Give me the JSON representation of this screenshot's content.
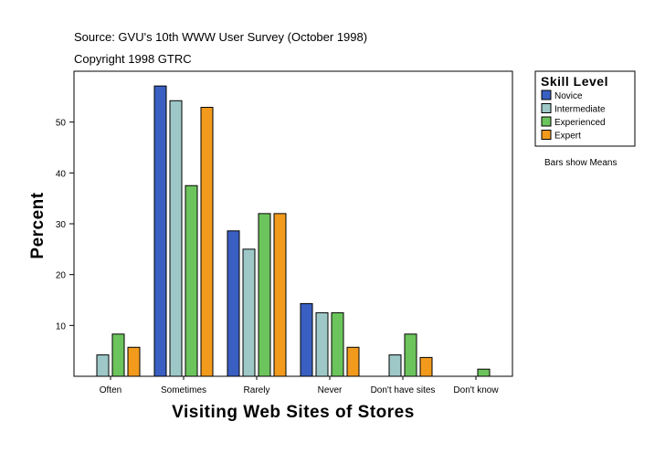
{
  "header": {
    "source": "Source: GVU's 10th WWW User Survey (October 1998)",
    "copyright": "Copyright 1998 GTRC"
  },
  "note": "Bars show Means",
  "chart_data": {
    "type": "bar",
    "xlabel": "Visiting Web Sites of Stores",
    "ylabel": "Percent",
    "ylim": [
      0,
      60
    ],
    "yticks": [
      10,
      20,
      30,
      40,
      50
    ],
    "categories": [
      "Often",
      "Sometimes",
      "Rarely",
      "Never",
      "Don't have sites",
      "Don't know"
    ],
    "legend": {
      "title": "Skill Level",
      "placement": "top-right"
    },
    "grid": false,
    "series": [
      {
        "name": "Novice",
        "color": "#3a5fc2",
        "values": [
          0,
          57.1,
          28.6,
          14.3,
          0,
          0
        ]
      },
      {
        "name": "Intermediate",
        "color": "#9ec8c8",
        "values": [
          4.2,
          54.2,
          25.0,
          12.5,
          4.2,
          0
        ]
      },
      {
        "name": "Experienced",
        "color": "#6cc45c",
        "values": [
          8.3,
          37.5,
          32.0,
          12.5,
          8.3,
          1.4
        ]
      },
      {
        "name": "Expert",
        "color": "#f29a1c",
        "values": [
          5.7,
          52.9,
          32.0,
          5.7,
          3.7,
          0
        ]
      }
    ]
  }
}
